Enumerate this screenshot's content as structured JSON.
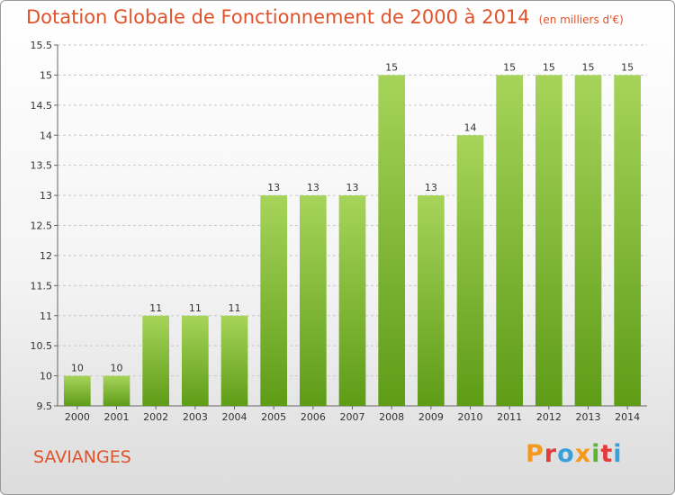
{
  "header": {
    "title": "Dotation Globale de Fonctionnement de 2000 à 2014",
    "unit": "(en milliers d'€)"
  },
  "footer": {
    "commune": "SAVIANGES",
    "logo": "Proxiti",
    "logo_colors": [
      "#f39a1e",
      "#e23b3b",
      "#3aa0dc",
      "#f39a1e",
      "#5cb531",
      "#e23b3b",
      "#3aa0dc"
    ]
  },
  "colors": {
    "bar_top": "#a6d45a",
    "bar_bottom": "#5e9c16",
    "grid": "#c8c8c8",
    "title": "#e0522a"
  },
  "chart_data": {
    "type": "bar",
    "categories": [
      "2000",
      "2001",
      "2002",
      "2003",
      "2004",
      "2005",
      "2006",
      "2007",
      "2008",
      "2009",
      "2010",
      "2011",
      "2012",
      "2013",
      "2014"
    ],
    "values": [
      10,
      10,
      11,
      11,
      11,
      13,
      13,
      13,
      15,
      13,
      14,
      15,
      15,
      15,
      15
    ],
    "value_labels": [
      "10",
      "10",
      "11",
      "11",
      "11",
      "13",
      "13",
      "13",
      "15",
      "13",
      "14",
      "15",
      "15",
      "15",
      "15"
    ],
    "ylim": [
      9.5,
      15.5
    ],
    "yticks": [
      9.5,
      10,
      10.5,
      11,
      11.5,
      12,
      12.5,
      13,
      13.5,
      14,
      14.5,
      15,
      15.5
    ],
    "ytick_labels": [
      "9.5",
      "10",
      "10.5",
      "11",
      "11.5",
      "12",
      "12.5",
      "13",
      "13.5",
      "14",
      "14.5",
      "15",
      "15.5"
    ],
    "grid": true,
    "legend": "none"
  }
}
